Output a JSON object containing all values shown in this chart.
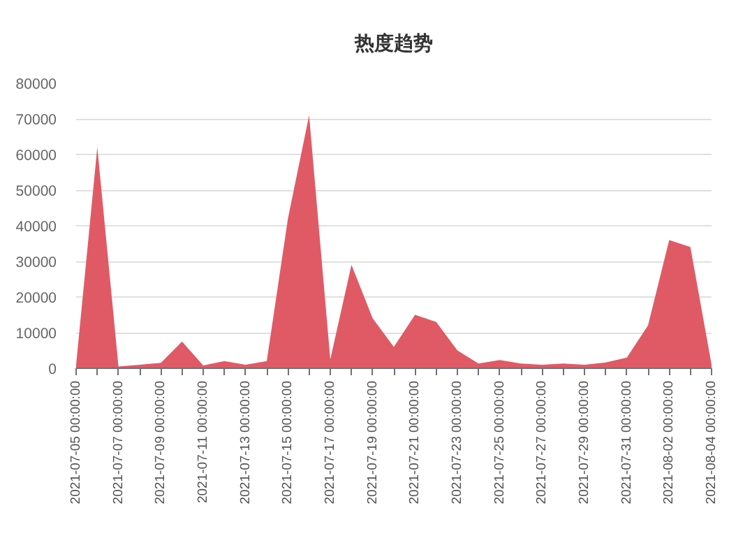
{
  "chart_data": {
    "type": "area",
    "title": "热度趋势",
    "categories": [
      "2021-07-05 00:00:00",
      null,
      "2021-07-07 00:00:00",
      null,
      "2021-07-09 00:00:00",
      null,
      "2021-07-11 00:00:00",
      null,
      "2021-07-13 00:00:00",
      null,
      "2021-07-15 00:00:00",
      null,
      "2021-07-17 00:00:00",
      null,
      "2021-07-19 00:00:00",
      null,
      "2021-07-21 00:00:00",
      null,
      "2021-07-23 00:00:00",
      null,
      "2021-07-25 00:00:00",
      null,
      "2021-07-27 00:00:00",
      null,
      "2021-07-29 00:00:00",
      null,
      "2021-07-31 00:00:00",
      null,
      "2021-08-02 00:00:00",
      null,
      "2021-08-04 00:00:00"
    ],
    "values": [
      1000,
      62000,
      500,
      1000,
      1500,
      7500,
      800,
      2000,
      1000,
      2000,
      42000,
      71000,
      2500,
      29000,
      14000,
      6000,
      15000,
      13000,
      5000,
      1300,
      2300,
      1300,
      1000,
      1300,
      1000,
      1600,
      3000,
      12000,
      36000,
      34000,
      1000
    ],
    "color": "#e05a66",
    "ylim": [
      0,
      80000
    ],
    "yticks": [
      0,
      10000,
      20000,
      30000,
      40000,
      50000,
      60000,
      70000,
      80000
    ],
    "grid": "y"
  }
}
